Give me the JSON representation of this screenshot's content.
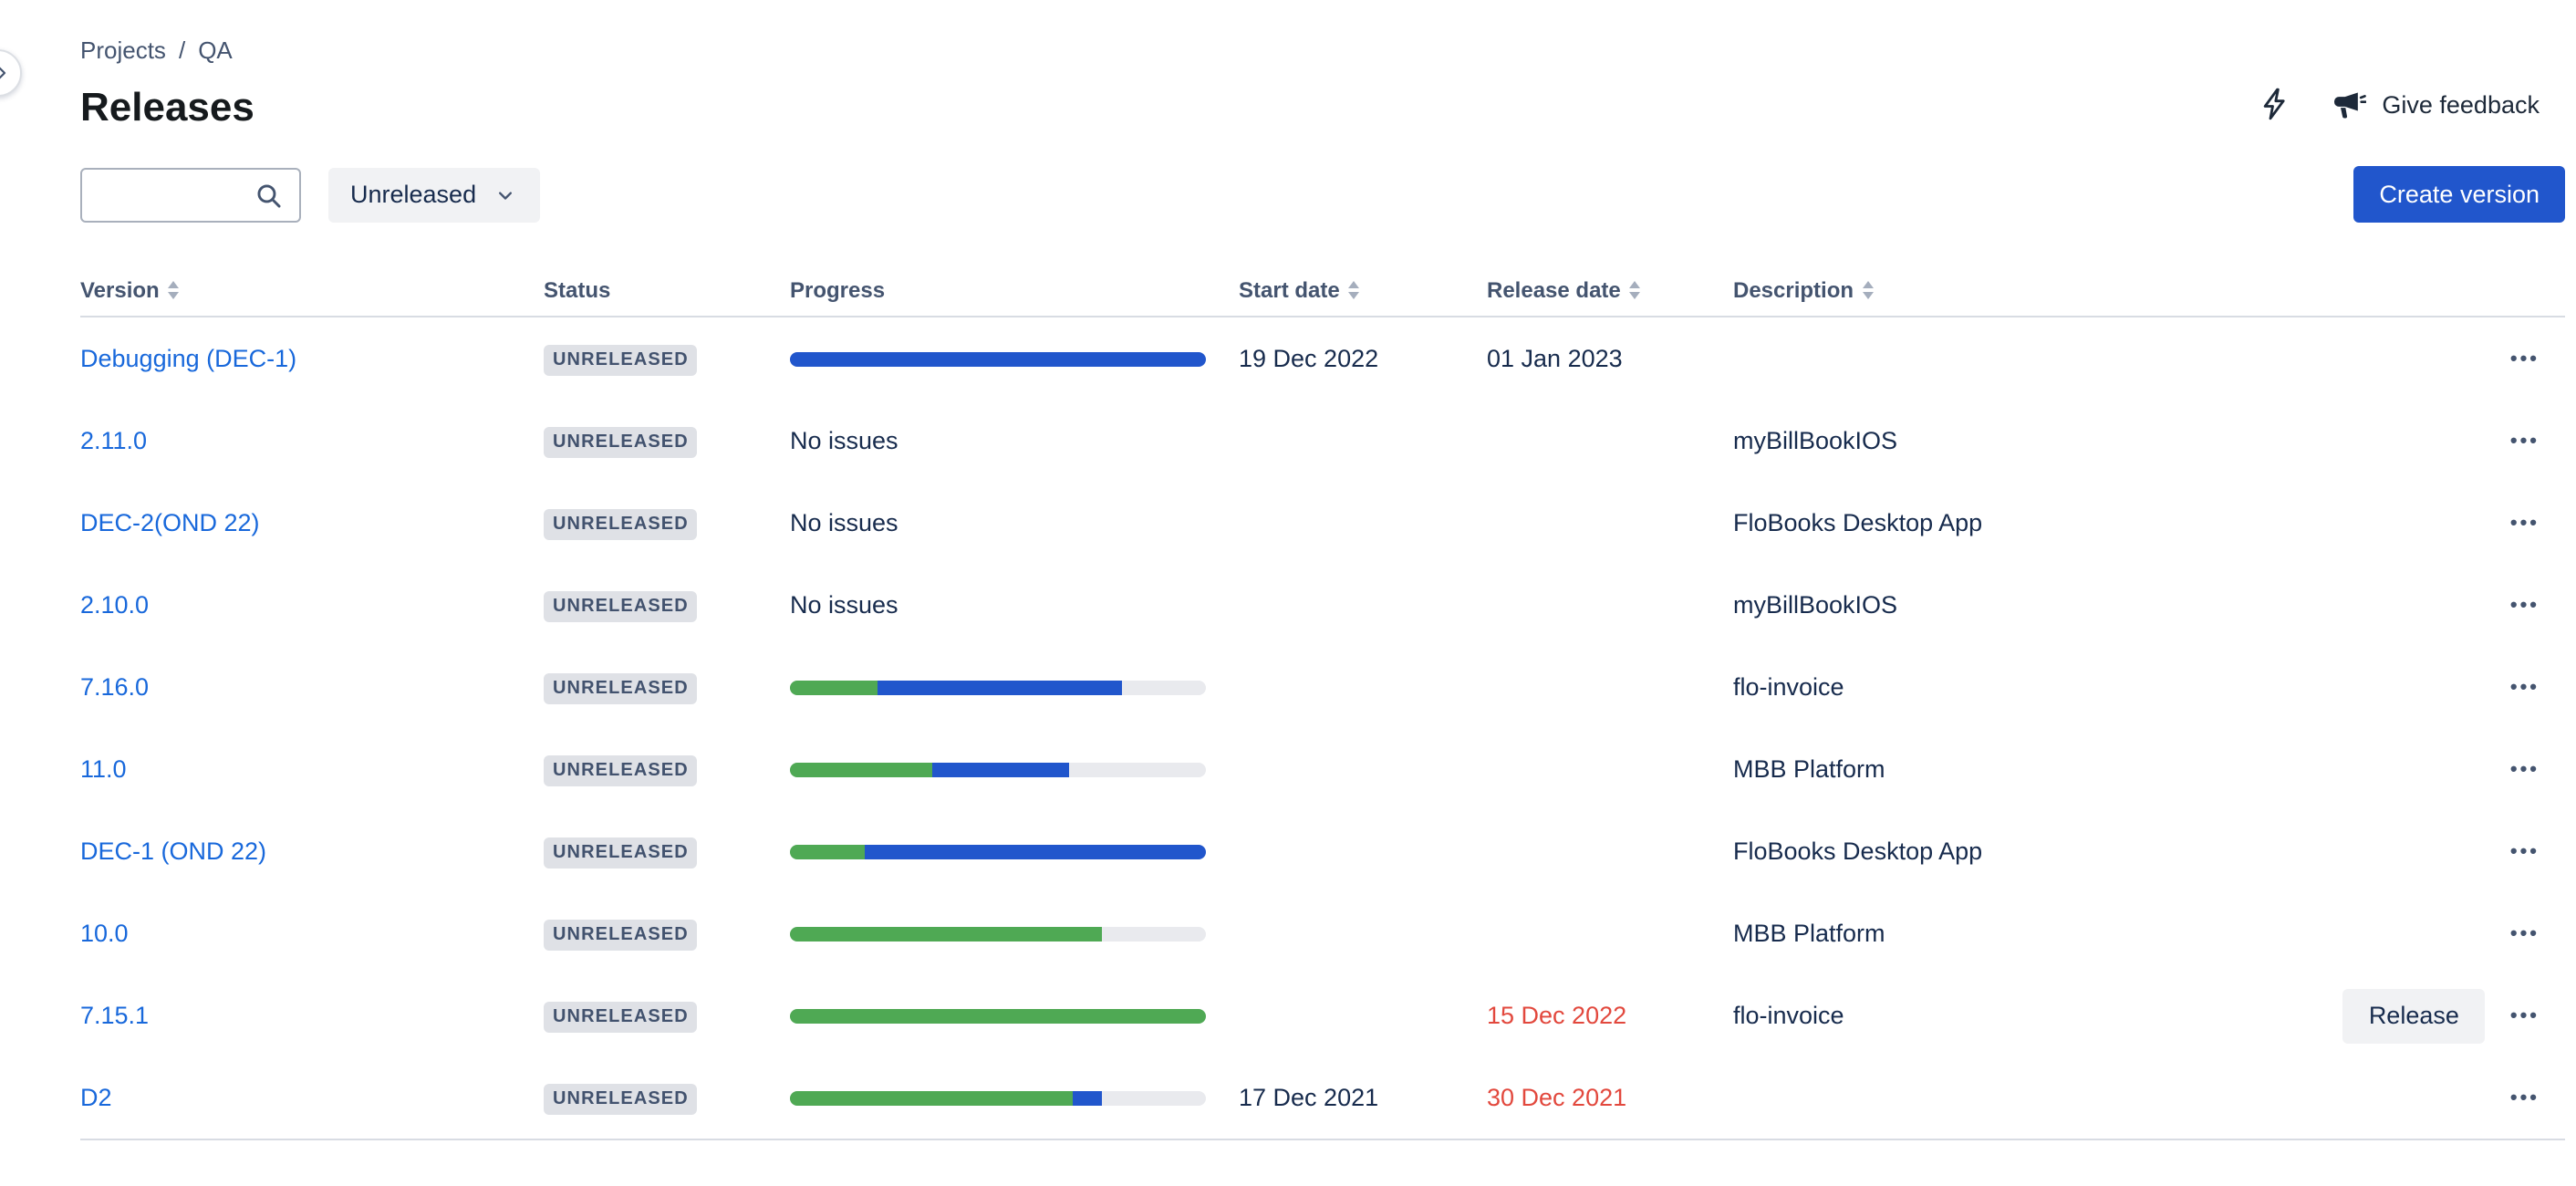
{
  "breadcrumb": {
    "project_label": "Projects",
    "separator": "/",
    "space_label": "QA"
  },
  "page": {
    "title": "Releases"
  },
  "header_actions": {
    "feedback_label": "Give feedback"
  },
  "toolbar": {
    "search_value": "",
    "filter_selected": "Unreleased",
    "create_button_label": "Create version"
  },
  "icons": {
    "more_glyph": "•••"
  },
  "table": {
    "columns": [
      {
        "label": "Version",
        "sortable": true
      },
      {
        "label": "Status",
        "sortable": false
      },
      {
        "label": "Progress",
        "sortable": false
      },
      {
        "label": "Start date",
        "sortable": true
      },
      {
        "label": "Release date",
        "sortable": true
      },
      {
        "label": "Description",
        "sortable": true
      }
    ],
    "no_issues_label": "No issues",
    "release_button_label": "Release",
    "rows": [
      {
        "version": "Debugging (DEC-1)",
        "status": "UNRELEASED",
        "progress": {
          "done_percent": 0,
          "in_progress_percent": 100
        },
        "start_date": "19 Dec 2022",
        "release_date": "01 Jan 2023",
        "release_overdue": false,
        "description": "",
        "release_action": false
      },
      {
        "version": "2.11.0",
        "status": "UNRELEASED",
        "progress": null,
        "no_issues": true,
        "start_date": "",
        "release_date": "",
        "release_overdue": false,
        "description": "myBillBookIOS",
        "release_action": false
      },
      {
        "version": "DEC-2(OND 22)",
        "status": "UNRELEASED",
        "progress": null,
        "no_issues": true,
        "start_date": "",
        "release_date": "",
        "release_overdue": false,
        "description": "FloBooks Desktop App",
        "release_action": false
      },
      {
        "version": "2.10.0",
        "status": "UNRELEASED",
        "progress": null,
        "no_issues": true,
        "start_date": "",
        "release_date": "",
        "release_overdue": false,
        "description": "myBillBookIOS",
        "release_action": false
      },
      {
        "version": "7.16.0",
        "status": "UNRELEASED",
        "progress": {
          "done_percent": 21,
          "in_progress_percent": 59
        },
        "start_date": "",
        "release_date": "",
        "release_overdue": false,
        "description": "flo-invoice",
        "release_action": false
      },
      {
        "version": "11.0",
        "status": "UNRELEASED",
        "progress": {
          "done_percent": 34,
          "in_progress_percent": 33
        },
        "start_date": "",
        "release_date": "",
        "release_overdue": false,
        "description": "MBB Platform",
        "release_action": false
      },
      {
        "version": "DEC-1 (OND 22)",
        "status": "UNRELEASED",
        "progress": {
          "done_percent": 18,
          "in_progress_percent": 82
        },
        "start_date": "",
        "release_date": "",
        "release_overdue": false,
        "description": "FloBooks Desktop App",
        "release_action": false
      },
      {
        "version": "10.0",
        "status": "UNRELEASED",
        "progress": {
          "done_percent": 75,
          "in_progress_percent": 0
        },
        "start_date": "",
        "release_date": "",
        "release_overdue": false,
        "description": "MBB Platform",
        "release_action": false
      },
      {
        "version": "7.15.1",
        "status": "UNRELEASED",
        "progress": {
          "done_percent": 100,
          "in_progress_percent": 0
        },
        "start_date": "",
        "release_date": "15 Dec 2022",
        "release_overdue": true,
        "description": "flo-invoice",
        "release_action": true
      },
      {
        "version": "D2",
        "status": "UNRELEASED",
        "progress": {
          "done_percent": 68,
          "in_progress_percent": 7
        },
        "start_date": "17 Dec 2021",
        "release_date": "30 Dec 2021",
        "release_overdue": true,
        "description": "",
        "release_action": false
      }
    ]
  },
  "colors": {
    "accent_blue": "#2156CC",
    "link_blue": "#1868DB",
    "progress_done": "#4FA954",
    "progress_in_progress": "#2156CC",
    "progress_track": "#E9EAEE",
    "overdue_red": "#E2483D",
    "badge_bg": "#DFE1E6",
    "badge_text": "#42526E",
    "text_primary": "#172B4D",
    "text_secondary": "#44546F",
    "border_gray": "#D8DCE3"
  }
}
